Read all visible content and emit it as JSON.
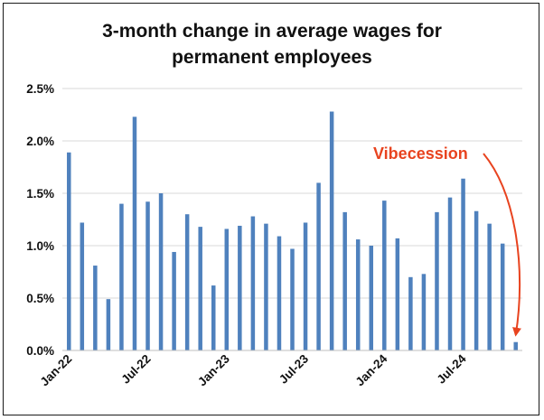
{
  "chart_data": {
    "type": "bar",
    "title_lines": [
      "3-month change in average wages for",
      "permanent employees"
    ],
    "xlabel": "",
    "ylabel": "",
    "ylim": [
      0,
      2.5
    ],
    "y_ticks": [
      "0.0%",
      "0.5%",
      "1.0%",
      "1.5%",
      "2.0%",
      "2.5%"
    ],
    "y_tick_values": [
      0,
      0.5,
      1.0,
      1.5,
      2.0,
      2.5
    ],
    "x_tick_labels": [
      {
        "index": 0,
        "label": "Jan-22"
      },
      {
        "index": 6,
        "label": "Jul-22"
      },
      {
        "index": 12,
        "label": "Jan-23"
      },
      {
        "index": 18,
        "label": "Jul-23"
      },
      {
        "index": 24,
        "label": "Jan-24"
      },
      {
        "index": 30,
        "label": "Jul-24"
      }
    ],
    "categories": [
      "Jan-22",
      "Feb-22",
      "Mar-22",
      "Apr-22",
      "May-22",
      "Jun-22",
      "Jul-22",
      "Aug-22",
      "Sep-22",
      "Oct-22",
      "Nov-22",
      "Dec-22",
      "Jan-23",
      "Feb-23",
      "Mar-23",
      "Apr-23",
      "May-23",
      "Jun-23",
      "Jul-23",
      "Aug-23",
      "Sep-23",
      "Oct-23",
      "Nov-23",
      "Dec-23",
      "Jan-24",
      "Feb-24",
      "Mar-24",
      "Apr-24",
      "May-24",
      "Jun-24",
      "Jul-24",
      "Aug-24",
      "Sep-24",
      "Oct-24",
      "Nov-24"
    ],
    "values": [
      1.89,
      1.22,
      0.81,
      0.49,
      1.4,
      2.23,
      1.42,
      1.5,
      0.94,
      1.3,
      1.18,
      0.62,
      1.16,
      1.19,
      1.28,
      1.21,
      1.09,
      0.97,
      1.22,
      1.6,
      2.28,
      1.32,
      1.06,
      1.0,
      1.43,
      1.07,
      0.7,
      0.73,
      1.32,
      1.46,
      1.64,
      1.33,
      1.21,
      1.02,
      0.08
    ],
    "bar_color": "#4F81BD",
    "grid": true,
    "annotation": {
      "text": "Vibecession",
      "color": "#E8431F",
      "points_to_index": 34
    }
  }
}
